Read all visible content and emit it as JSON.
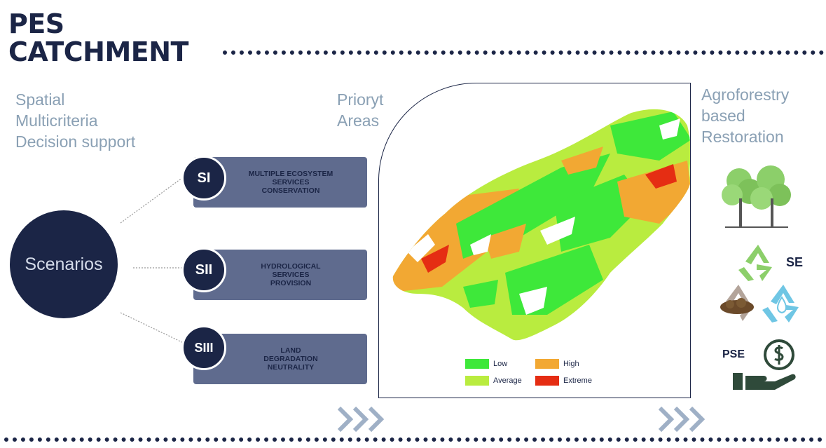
{
  "title": {
    "line1": "PES",
    "line2": "CATCHMENT"
  },
  "left_label": {
    "line1": "Spatial",
    "line2": "Multicriteria",
    "line3": "Decision support"
  },
  "center_label": {
    "line1": "Prioryt",
    "line2": "Areas"
  },
  "right_label": {
    "line1": "Agroforestry",
    "line2": "based",
    "line3": "Restoration"
  },
  "scenarios": {
    "label": "Scenarios",
    "items": [
      {
        "badge": "SI",
        "lines": [
          "MULTIPLE ECOSYSTEM",
          "SERVICES",
          "CONSERVATION"
        ]
      },
      {
        "badge": "SII",
        "lines": [
          "HYDROLOGICAL",
          "SERVICES",
          "PROVISION"
        ]
      },
      {
        "badge": "SIII",
        "lines": [
          "LAND",
          "DEGRADATION",
          "NEUTRALITY"
        ]
      }
    ]
  },
  "legend": {
    "items": [
      {
        "label": "Low",
        "color": "#3ee83a"
      },
      {
        "label": "High",
        "color": "#f2a833"
      },
      {
        "label": "Average",
        "color": "#b9ec3f"
      },
      {
        "label": "Extreme",
        "color": "#e52d13"
      }
    ]
  },
  "icons": {
    "trees": "trees-icon",
    "recycle": "recycle-icon",
    "soil": "soil-recycle-icon",
    "water": "water-recycle-icon",
    "money": "dollar-coin-icon",
    "hand": "hand-icon",
    "chevrons": "triple-chevron-icon"
  },
  "right_badges": {
    "se": "SE",
    "pse": "PSE"
  },
  "colors": {
    "navy": "#1b2546",
    "box": "#5f6b8e",
    "label": "#8aa0b4",
    "chevron": "#9fb0c6",
    "tree": "#8ccf6a",
    "icon_dark": "#2f4a3a"
  }
}
